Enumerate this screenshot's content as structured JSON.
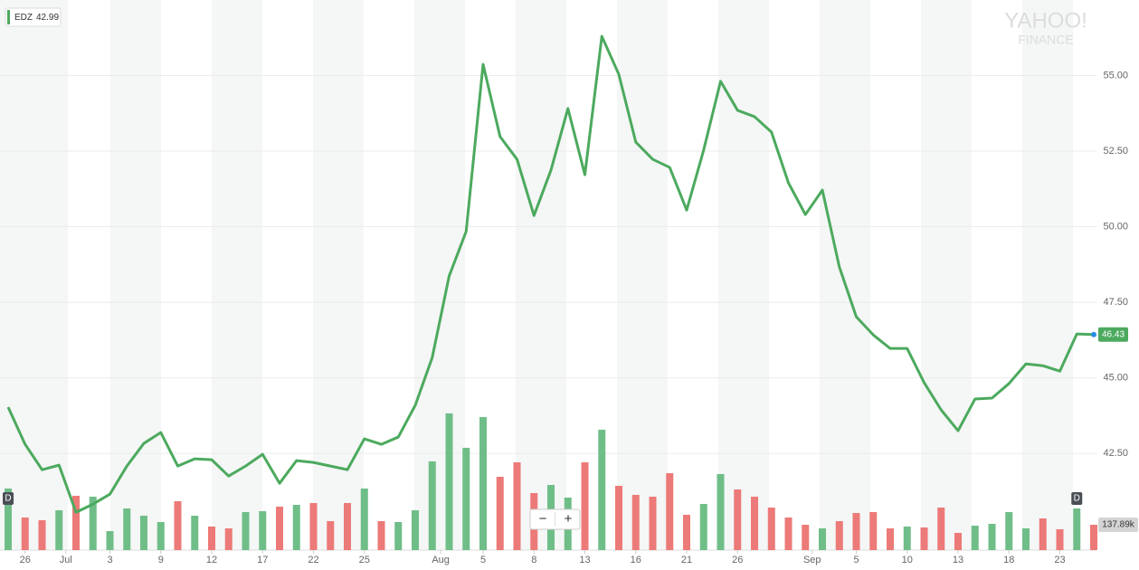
{
  "chart_data": {
    "type": "line",
    "legend": {
      "value": 42.99
    },
    "watermark": [
      "YAHOO!",
      "FINANCE"
    ],
    "series": [
      {
        "name": "EDZ",
        "color": "#4caa5e",
        "values": [
          44.03,
          42.8,
          41.96,
          42.11,
          40.55,
          40.82,
          41.15,
          42.08,
          42.83,
          43.19,
          42.08,
          42.32,
          42.29,
          41.75,
          42.08,
          42.47,
          41.51,
          42.26,
          42.2,
          42.08,
          41.96,
          42.98,
          42.8,
          43.04,
          44.09,
          45.67,
          48.37,
          49.84,
          55.37,
          52.98,
          52.23,
          50.37,
          51.87,
          53.91,
          51.72,
          56.3,
          55.04,
          52.8,
          52.23,
          51.96,
          50.55,
          52.53,
          54.81,
          53.85,
          53.64,
          53.13,
          51.45,
          50.4,
          51.21,
          48.67,
          47.02,
          46.42,
          45.97,
          45.97,
          44.84,
          43.94,
          43.25,
          44.3,
          44.33,
          44.81,
          45.46,
          45.4,
          45.22,
          46.45,
          46.43
        ]
      }
    ],
    "xlim": [
      -0.48,
      64.16
    ],
    "xticks": [
      {
        "value": 1,
        "label": "26"
      },
      {
        "value": 3.4,
        "label": "Jul"
      },
      {
        "value": 6,
        "label": "3"
      },
      {
        "value": 9,
        "label": "9"
      },
      {
        "value": 12,
        "label": "12"
      },
      {
        "value": 15,
        "label": "17"
      },
      {
        "value": 18,
        "label": "22"
      },
      {
        "value": 21,
        "label": "25"
      },
      {
        "value": 25.5,
        "label": "Aug"
      },
      {
        "value": 28,
        "label": "5"
      },
      {
        "value": 31,
        "label": "8"
      },
      {
        "value": 34,
        "label": "13"
      },
      {
        "value": 37,
        "label": "16"
      },
      {
        "value": 40,
        "label": "21"
      },
      {
        "value": 43,
        "label": "26"
      },
      {
        "value": 47.4,
        "label": "Sep"
      },
      {
        "value": 50,
        "label": "5"
      },
      {
        "value": 53,
        "label": "10"
      },
      {
        "value": 56,
        "label": "13"
      },
      {
        "value": 59,
        "label": "18"
      },
      {
        "value": 62,
        "label": "23"
      }
    ],
    "ylim": [
      39.3,
      57.5
    ],
    "yticks": [
      {
        "value": 42.5,
        "label": "42.50"
      },
      {
        "value": 45,
        "label": "45.00"
      },
      {
        "value": 47.5,
        "label": "47.50"
      },
      {
        "value": 50,
        "label": "50.00"
      },
      {
        "value": 52.5,
        "label": "52.50"
      },
      {
        "value": 55,
        "label": "55.00"
      }
    ],
    "grid": true,
    "volume": {
      "ylim": [
        0,
        1024000
      ],
      "values": [
        334900,
        177300,
        162500,
        216700,
        295500,
        290600,
        103400,
        226600,
        187200,
        152700,
        266000,
        187200,
        128100,
        118200,
        206900,
        211800,
        236400,
        246300,
        256100,
        157600,
        256100,
        334900,
        157600,
        152700,
        216700,
        482700,
        743700,
        556500,
        724000,
        398900,
        477700,
        310300,
        354600,
        285700,
        477700,
        655000,
        349700,
        300400,
        290600,
        418600,
        192100,
        251200,
        413700,
        330000,
        290600,
        231500,
        177300,
        137900,
        118200,
        157600,
        201900,
        206900,
        118200,
        128100,
        123100,
        231500,
        93600,
        133000,
        142800,
        206900,
        118200,
        172400,
        113300,
        226600,
        137890
      ],
      "colors": [
        "#6fbe88",
        "#ec7a78",
        "#ec7a78",
        "#6fbe88",
        "#ec7a78",
        "#6fbe88",
        "#6fbe88",
        "#6fbe88",
        "#6fbe88",
        "#6fbe88",
        "#ec7a78",
        "#6fbe88",
        "#ec7a78",
        "#ec7a78",
        "#6fbe88",
        "#6fbe88",
        "#ec7a78",
        "#6fbe88",
        "#ec7a78",
        "#ec7a78",
        "#ec7a78",
        "#6fbe88",
        "#ec7a78",
        "#6fbe88",
        "#6fbe88",
        "#6fbe88",
        "#6fbe88",
        "#6fbe88",
        "#6fbe88",
        "#ec7a78",
        "#ec7a78",
        "#ec7a78",
        "#6fbe88",
        "#6fbe88",
        "#ec7a78",
        "#6fbe88",
        "#ec7a78",
        "#ec7a78",
        "#ec7a78",
        "#ec7a78",
        "#ec7a78",
        "#6fbe88",
        "#6fbe88",
        "#ec7a78",
        "#ec7a78",
        "#ec7a78",
        "#ec7a78",
        "#ec7a78",
        "#6fbe88",
        "#ec7a78",
        "#ec7a78",
        "#ec7a78",
        "#ec7a78",
        "#6fbe88",
        "#ec7a78",
        "#ec7a78",
        "#ec7a78",
        "#6fbe88",
        "#6fbe88",
        "#6fbe88",
        "#6fbe88",
        "#ec7a78",
        "#ec7a78",
        "#6fbe88",
        "#ec7a78"
      ]
    },
    "volume_label": {
      "value": 137890,
      "label": "137.89k"
    },
    "markers": [
      {
        "label": "D",
        "x": 0
      },
      {
        "label": "D",
        "x": 63
      }
    ],
    "zoom": [
      "−",
      "+"
    ]
  }
}
